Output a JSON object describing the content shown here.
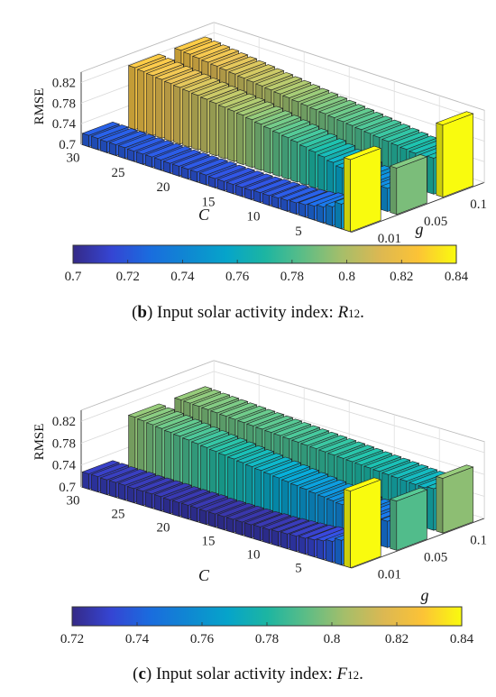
{
  "chart_data": [
    {
      "type": "bar3d",
      "panel_label": "b",
      "caption_prefix": "(",
      "caption_suffix": ") Input solar activity index: ",
      "caption_index_letter": "R",
      "caption_index_sub": "12",
      "caption_end": ".",
      "zlabel": "RMSE",
      "xlabel": "C",
      "ylabel": "g",
      "z_ticks": [
        "0.7",
        "0.74",
        "0.78",
        "0.82"
      ],
      "z_tick_values": [
        0.7,
        0.74,
        0.78,
        0.82
      ],
      "zlim": [
        0.7,
        0.84
      ],
      "c_ticks": [
        "30",
        "25",
        "20",
        "15",
        "10",
        "5"
      ],
      "c_tick_values": [
        30,
        25,
        20,
        15,
        10,
        5
      ],
      "c_values": [
        30,
        29,
        28,
        27,
        26,
        25,
        24,
        23,
        22,
        21,
        20,
        19,
        18,
        17,
        16,
        15,
        14,
        13,
        12,
        11,
        10,
        9,
        8,
        7,
        6,
        5,
        4,
        3,
        2,
        1
      ],
      "g_ticks": [
        "0.01",
        "0.05",
        "0.1"
      ],
      "g_values": [
        0.01,
        0.05,
        0.1
      ],
      "rmse_g0_01": [
        0.722,
        0.722,
        0.721,
        0.721,
        0.721,
        0.72,
        0.72,
        0.72,
        0.72,
        0.719,
        0.719,
        0.719,
        0.719,
        0.719,
        0.718,
        0.718,
        0.718,
        0.718,
        0.718,
        0.719,
        0.719,
        0.72,
        0.721,
        0.722,
        0.724,
        0.727,
        0.731,
        0.737,
        0.748,
        0.84
      ],
      "rmse_g0_05": [
        0.82,
        0.818,
        0.816,
        0.814,
        0.812,
        0.81,
        0.808,
        0.806,
        0.804,
        0.802,
        0.8,
        0.798,
        0.796,
        0.793,
        0.79,
        0.787,
        0.784,
        0.781,
        0.778,
        0.774,
        0.77,
        0.766,
        0.761,
        0.756,
        0.751,
        0.746,
        0.742,
        0.74,
        0.745,
        0.79
      ],
      "rmse_g0_1": [
        0.82,
        0.818,
        0.816,
        0.814,
        0.812,
        0.81,
        0.808,
        0.806,
        0.804,
        0.802,
        0.8,
        0.798,
        0.796,
        0.794,
        0.792,
        0.79,
        0.788,
        0.786,
        0.784,
        0.782,
        0.78,
        0.778,
        0.776,
        0.774,
        0.772,
        0.77,
        0.768,
        0.766,
        0.77,
        0.84
      ],
      "colorbar_ticks": [
        "0.7",
        "0.72",
        "0.74",
        "0.76",
        "0.78",
        "0.8",
        "0.82",
        "0.84"
      ],
      "colorbar_range": [
        0.7,
        0.84
      ],
      "colormap": "parula",
      "grid": true
    },
    {
      "type": "bar3d",
      "panel_label": "c",
      "caption_prefix": "(",
      "caption_suffix": ") Input solar activity index: ",
      "caption_index_letter": "F",
      "caption_index_sub": "12",
      "caption_end": ".",
      "zlabel": "RMSE",
      "xlabel": "C",
      "ylabel": "g",
      "z_ticks": [
        "0.7",
        "0.74",
        "0.78",
        "0.82"
      ],
      "z_tick_values": [
        0.7,
        0.74,
        0.78,
        0.82
      ],
      "zlim": [
        0.7,
        0.84
      ],
      "c_ticks": [
        "30",
        "25",
        "20",
        "15",
        "10",
        "5"
      ],
      "c_tick_values": [
        30,
        25,
        20,
        15,
        10,
        5
      ],
      "c_values": [
        30,
        29,
        28,
        27,
        26,
        25,
        24,
        23,
        22,
        21,
        20,
        19,
        18,
        17,
        16,
        15,
        14,
        13,
        12,
        11,
        10,
        9,
        8,
        7,
        6,
        5,
        4,
        3,
        2,
        1
      ],
      "g_ticks": [
        "0.01",
        "0.05",
        "0.1"
      ],
      "g_values": [
        0.01,
        0.05,
        0.1
      ],
      "rmse_g0_01": [
        0.728,
        0.728,
        0.727,
        0.727,
        0.727,
        0.726,
        0.726,
        0.726,
        0.726,
        0.725,
        0.725,
        0.725,
        0.725,
        0.724,
        0.724,
        0.724,
        0.724,
        0.724,
        0.724,
        0.725,
        0.725,
        0.726,
        0.727,
        0.728,
        0.729,
        0.731,
        0.734,
        0.738,
        0.745,
        0.84
      ],
      "rmse_g0_05": [
        0.8,
        0.798,
        0.796,
        0.794,
        0.792,
        0.79,
        0.788,
        0.786,
        0.784,
        0.782,
        0.78,
        0.778,
        0.776,
        0.774,
        0.772,
        0.77,
        0.768,
        0.766,
        0.764,
        0.762,
        0.76,
        0.758,
        0.756,
        0.754,
        0.752,
        0.75,
        0.748,
        0.746,
        0.748,
        0.79
      ],
      "rmse_g0_1": [
        0.8,
        0.799,
        0.798,
        0.797,
        0.796,
        0.795,
        0.794,
        0.793,
        0.792,
        0.791,
        0.79,
        0.789,
        0.788,
        0.787,
        0.786,
        0.785,
        0.784,
        0.783,
        0.782,
        0.781,
        0.78,
        0.779,
        0.778,
        0.777,
        0.776,
        0.775,
        0.774,
        0.773,
        0.776,
        0.8
      ],
      "colorbar_ticks": [
        "0.72",
        "0.74",
        "0.76",
        "0.78",
        "0.8",
        "0.82",
        "0.84"
      ],
      "colorbar_range": [
        0.72,
        0.84
      ],
      "colormap": "parula",
      "grid": true
    }
  ]
}
